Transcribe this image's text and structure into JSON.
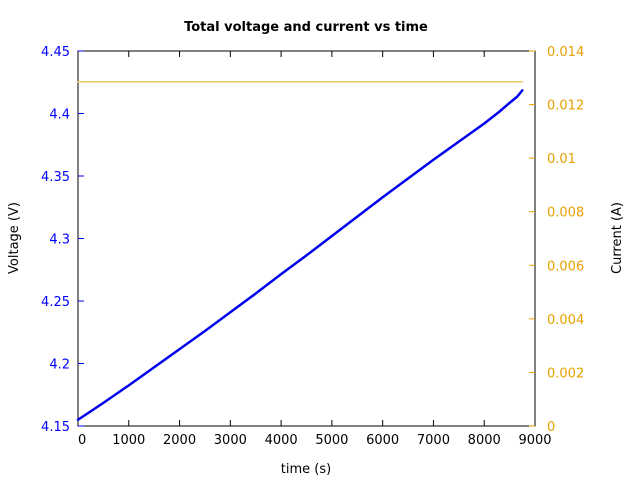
{
  "chart_data": {
    "type": "line",
    "title": "Total voltage and current vs time",
    "xlabel": "time (s)",
    "ylabel_left": "Voltage (V)",
    "ylabel_right": "Current (A)",
    "xlim": [
      0,
      9000
    ],
    "ylim_left": [
      4.15,
      4.45
    ],
    "ylim_right": [
      0,
      0.014
    ],
    "x_ticks": [
      "0",
      "1000",
      "2000",
      "3000",
      "4000",
      "5000",
      "6000",
      "7000",
      "8000",
      "9000"
    ],
    "y_left_ticks": [
      "4.15",
      "4.2",
      "4.25",
      "4.3",
      "4.35",
      "4.4",
      "4.45"
    ],
    "y_right_ticks": [
      "0",
      "0.002",
      "0.004",
      "0.006",
      "0.008",
      "0.01",
      "0.012",
      "0.014"
    ],
    "grid": false,
    "series": [
      {
        "axis": "left",
        "color": "#0000ee",
        "x": [
          0,
          500,
          1000,
          1500,
          2000,
          2500,
          3000,
          3500,
          4000,
          4500,
          5000,
          5500,
          6000,
          6500,
          7000,
          7500,
          8000,
          8300,
          8500,
          8650,
          8750
        ],
        "y": [
          4.155,
          4.1685,
          4.1825,
          4.197,
          4.2115,
          4.226,
          4.241,
          4.256,
          4.2715,
          4.2865,
          4.302,
          4.3175,
          4.333,
          4.348,
          4.363,
          4.3775,
          4.392,
          4.4015,
          4.4085,
          4.4135,
          4.4185
        ]
      },
      {
        "axis": "right",
        "color": "#f0c860",
        "x": [
          0,
          8750
        ],
        "y": [
          0.01285,
          0.01285
        ]
      }
    ]
  },
  "colors": {
    "left_axis": "#0000ff",
    "right_axis": "#e6a000"
  }
}
